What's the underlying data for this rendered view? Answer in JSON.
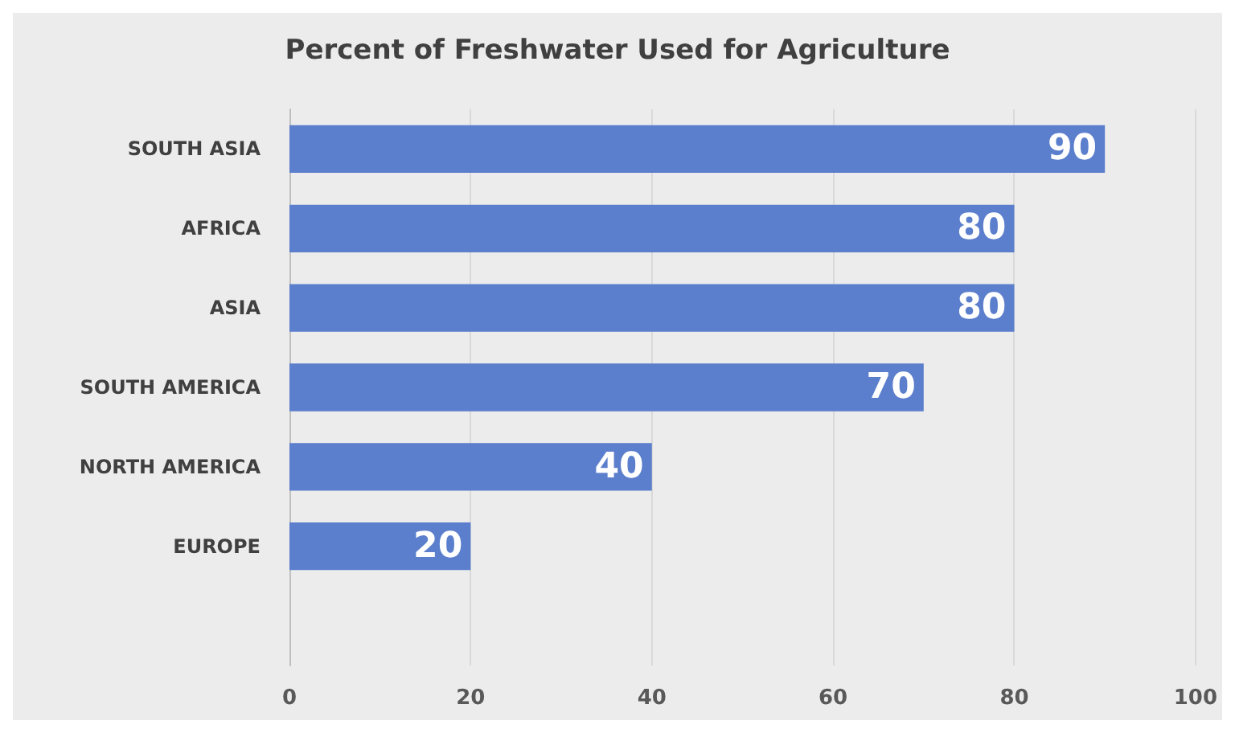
{
  "chart_data": {
    "type": "bar",
    "orientation": "horizontal",
    "title": "Percent of Freshwater Used for Agriculture",
    "categories": [
      "SOUTH ASIA",
      "AFRICA",
      "ASIA",
      "SOUTH AMERICA",
      "NORTH AMERICA",
      "EUROPE",
      null
    ],
    "values": [
      90,
      80,
      80,
      70,
      40,
      20,
      null
    ],
    "color": "#5b7fcc",
    "xlim": [
      0,
      100
    ],
    "xticks": [
      0,
      20,
      40,
      60,
      80,
      100
    ],
    "grid": "x",
    "data_labels": true
  }
}
